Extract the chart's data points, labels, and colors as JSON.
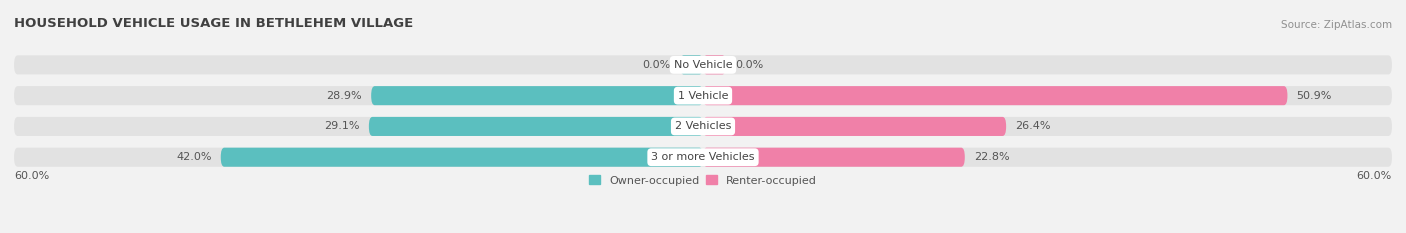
{
  "title": "HOUSEHOLD VEHICLE USAGE IN BETHLEHEM VILLAGE",
  "source": "Source: ZipAtlas.com",
  "categories": [
    "No Vehicle",
    "1 Vehicle",
    "2 Vehicles",
    "3 or more Vehicles"
  ],
  "owner_values": [
    0.0,
    28.9,
    29.1,
    42.0
  ],
  "renter_values": [
    0.0,
    50.9,
    26.4,
    22.8
  ],
  "owner_color": "#5bbfbf",
  "renter_color": "#f080a8",
  "axis_max": 60.0,
  "axis_label_left": "60.0%",
  "axis_label_right": "60.0%",
  "bg_color": "#f2f2f2",
  "bar_bg_color": "#e2e2e2",
  "title_color": "#404040",
  "source_color": "#909090",
  "label_color": "#555555",
  "category_bg": "#ffffff",
  "legend_owner": "Owner-occupied",
  "legend_renter": "Renter-occupied"
}
